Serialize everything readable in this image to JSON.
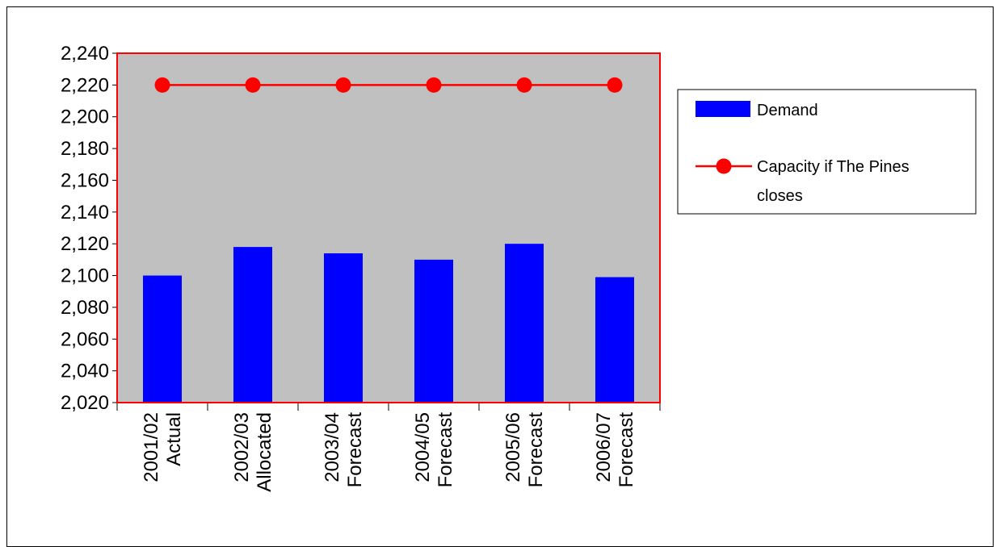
{
  "chart_data": {
    "type": "bar",
    "categories": [
      [
        "2001/02",
        "Actual"
      ],
      [
        "2002/03",
        "Allocated"
      ],
      [
        "2003/04",
        "Forecast"
      ],
      [
        "2004/05",
        "Forecast"
      ],
      [
        "2005/06",
        "Forecast"
      ],
      [
        "2006/07",
        "Forecast"
      ]
    ],
    "series": [
      {
        "name": "Demand",
        "kind": "bar",
        "color": "#0000FF",
        "values": [
          2100,
          2118,
          2114,
          2110,
          2120,
          2099
        ]
      },
      {
        "name": "Capacity if The Pines closes",
        "kind": "line",
        "color": "#FF0000",
        "values": [
          2220,
          2220,
          2220,
          2220,
          2220,
          2220
        ]
      }
    ],
    "ylim": [
      2020,
      2240
    ],
    "ytick_step": 20,
    "ytick_labels": [
      "2,020",
      "2,040",
      "2,060",
      "2,080",
      "2,100",
      "2,120",
      "2,140",
      "2,160",
      "2,180",
      "2,200",
      "2,220",
      "2,240"
    ],
    "title": "",
    "xlabel": "",
    "ylabel": "",
    "grid": false,
    "plot_background": "#C0C0C0",
    "plot_border_color": "#FF0000",
    "legend_position": "right",
    "legend_entries": [
      {
        "label": "Demand"
      },
      {
        "label_lines": [
          "Capacity if The Pines",
          "closes"
        ]
      }
    ]
  }
}
